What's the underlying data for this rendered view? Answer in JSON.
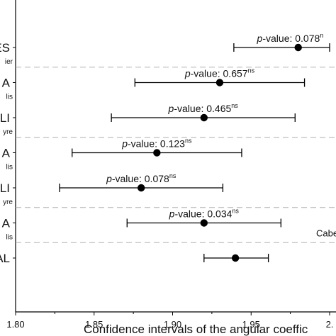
{
  "chart_data": {
    "type": "forest",
    "xlabel": "Confidence intervals of the angular coeffic",
    "xlim": [
      1.8,
      2.0
    ],
    "xticks": [
      "1.80",
      "1.85",
      "1.90",
      "1.95",
      "2."
    ],
    "rows": [
      {
        "label": "ES",
        "sublabel": "ier",
        "estimate": 1.98,
        "lower": 1.939,
        "upper": 2.0,
        "p_label_italic": "p",
        "p_label_rest": "-value: 0.078",
        "sup": "n"
      },
      {
        "label": "A",
        "sublabel": "lis",
        "estimate": 1.93,
        "lower": 1.876,
        "upper": 1.984,
        "p_label_italic": "p",
        "p_label_rest": "-value: 0.657",
        "sup": "ns"
      },
      {
        "label": "LI",
        "sublabel": "yre",
        "estimate": 1.92,
        "lower": 1.861,
        "upper": 1.978,
        "p_label_italic": "p",
        "p_label_rest": "-value: 0.465",
        "sup": "ns"
      },
      {
        "label": "A",
        "sublabel": "lis",
        "estimate": 1.89,
        "lower": 1.836,
        "upper": 1.944,
        "p_label_italic": "p",
        "p_label_rest": "-value: 0.123",
        "sup": "ns"
      },
      {
        "label": "LI",
        "sublabel": "yre",
        "estimate": 1.88,
        "lower": 1.828,
        "upper": 1.932,
        "p_label_italic": "p",
        "p_label_rest": "-value: 0.078",
        "sup": "ns"
      },
      {
        "label": "A",
        "sublabel": "lis",
        "estimate": 1.92,
        "lower": 1.871,
        "upper": 1.969,
        "p_label_italic": "p",
        "p_label_rest": "-value: 0.034",
        "sup": "ns"
      },
      {
        "label": "AL",
        "sublabel": "",
        "estimate": 1.94,
        "lower": 1.92,
        "upper": 1.961,
        "p_label_italic": "",
        "p_label_rest": "",
        "sup": ""
      }
    ],
    "group_labels": [
      {
        "text": "Cabe",
        "after_row": 5
      }
    ],
    "separators_after_rows": [
      0,
      2,
      4
    ],
    "dashed_separator_color": "#b0b0b0",
    "marker_color": "#000000"
  }
}
